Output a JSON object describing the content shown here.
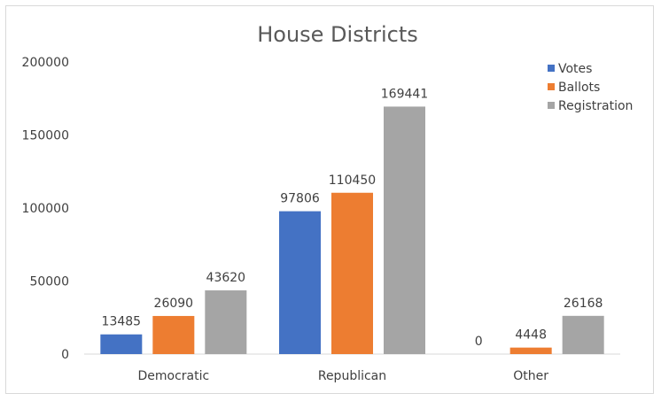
{
  "chart_data": {
    "type": "bar",
    "title": "House Districts",
    "categories": [
      "Democratic",
      "Republican",
      "Other"
    ],
    "series": [
      {
        "name": "Votes",
        "color": "#4472c4",
        "values": [
          13485,
          97806,
          0
        ]
      },
      {
        "name": "Ballots",
        "color": "#ed7d31",
        "values": [
          26090,
          110450,
          4448
        ]
      },
      {
        "name": "Registration",
        "color": "#a5a5a5",
        "values": [
          43620,
          169441,
          26168
        ]
      }
    ],
    "yticks": [
      "0",
      "50000",
      "100000",
      "150000",
      "200000"
    ],
    "ylim": [
      0,
      200000
    ],
    "grid": false,
    "legend": "top-right",
    "data_labels": true
  }
}
